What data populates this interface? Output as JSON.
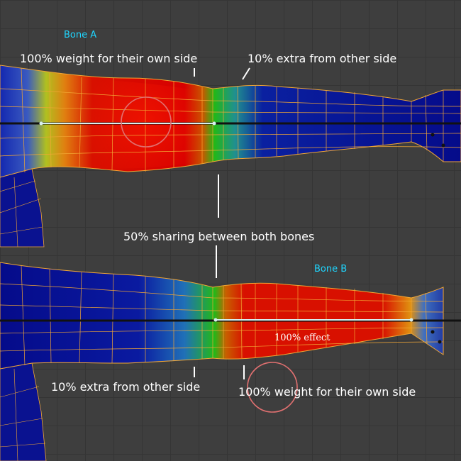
{
  "top_panel": {
    "bone_name": "Bone A",
    "label_own_side": "100% weight for their own side",
    "label_extra": "10% extra from other side"
  },
  "middle": {
    "label_sharing": "50% sharing between both bones"
  },
  "bottom_panel": {
    "bone_name": "Bone B",
    "label_effect": "100% effect",
    "label_extra": "10% extra from other side",
    "label_own_side": "100% weight for their own side"
  },
  "colors": {
    "background": "#3e3e3e",
    "weight_full": "#d80000",
    "weight_half": "#22b818",
    "weight_zero": "#050b8a",
    "wireframe": "#f2a735",
    "bone_name": "#1fd6ff",
    "highlight_circle": "#e07070"
  }
}
